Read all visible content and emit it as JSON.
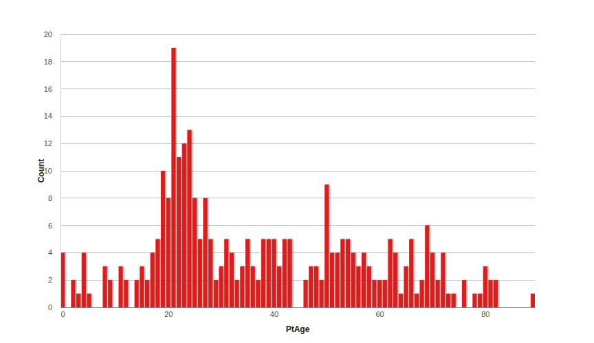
{
  "chart_data": {
    "type": "bar",
    "x_label": "PtAge",
    "y_label": "Count",
    "x": [
      0,
      1,
      2,
      3,
      4,
      5,
      6,
      7,
      8,
      9,
      10,
      11,
      12,
      13,
      14,
      15,
      16,
      17,
      18,
      19,
      20,
      21,
      22,
      23,
      24,
      25,
      26,
      27,
      28,
      29,
      30,
      31,
      32,
      33,
      34,
      35,
      36,
      37,
      38,
      39,
      40,
      41,
      42,
      43,
      44,
      45,
      46,
      47,
      48,
      49,
      50,
      51,
      52,
      53,
      54,
      55,
      56,
      57,
      58,
      59,
      60,
      61,
      62,
      63,
      64,
      65,
      66,
      67,
      68,
      69,
      70,
      71,
      72,
      73,
      74,
      75,
      76,
      77,
      78,
      79,
      80,
      81,
      82,
      83,
      84,
      85,
      86,
      87,
      88,
      89
    ],
    "values": [
      4,
      0,
      2,
      1,
      4,
      1,
      0,
      0,
      3,
      2,
      0,
      3,
      2,
      0,
      2,
      3,
      2,
      4,
      5,
      10,
      8,
      19,
      11,
      12,
      13,
      8,
      5,
      8,
      5,
      2,
      3,
      5,
      4,
      2,
      3,
      5,
      3,
      2,
      5,
      5,
      5,
      3,
      5,
      5,
      0,
      0,
      2,
      3,
      3,
      2,
      9,
      4,
      4,
      5,
      5,
      4,
      3,
      4,
      3,
      2,
      2,
      2,
      5,
      4,
      1,
      3,
      5,
      1,
      2,
      6,
      4,
      2,
      4,
      1,
      1,
      0,
      2,
      0,
      1,
      1,
      3,
      2,
      2,
      0,
      0,
      0,
      0,
      0,
      0,
      1
    ],
    "color": "#dd1a1a",
    "xlim": [
      -0.4,
      89.4
    ],
    "xticks": [
      0,
      20,
      40,
      60,
      80
    ],
    "ylim": [
      0,
      20
    ],
    "yticks": [
      0,
      2,
      4,
      6,
      8,
      10,
      12,
      14,
      16,
      18,
      20
    ],
    "grid": true
  }
}
